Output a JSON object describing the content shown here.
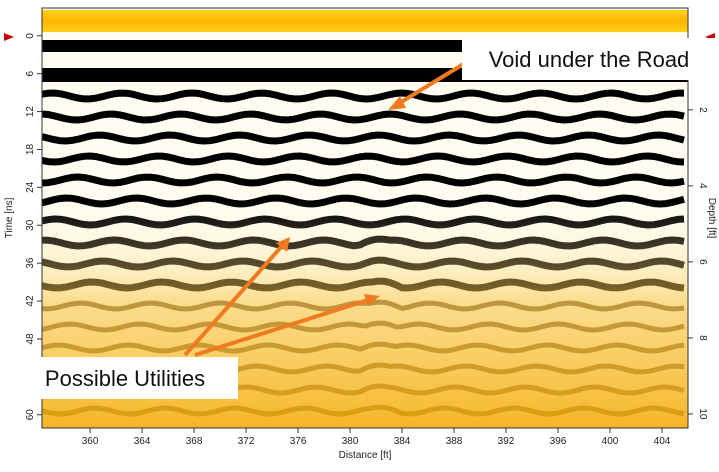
{
  "chart_data": {
    "type": "radargram",
    "xlabel": "Distance [ft]",
    "ylabel": "Time [ns]",
    "y2label": "Depth [ft]",
    "xlim": [
      356.3,
      406
    ],
    "xticks": [
      360,
      364,
      368,
      372,
      376,
      380,
      384,
      388,
      392,
      396,
      400,
      404
    ],
    "ylim": [
      62.1,
      -4.4
    ],
    "yticks": [
      0,
      6,
      12,
      18,
      24,
      30,
      36,
      42,
      48,
      54,
      60
    ],
    "y2lim": [
      10.37,
      -0.68
    ],
    "y2ticks": [
      2,
      4,
      6,
      8,
      10
    ],
    "annotations": [
      "Void under the Road",
      "Possible Utilities"
    ]
  }
}
